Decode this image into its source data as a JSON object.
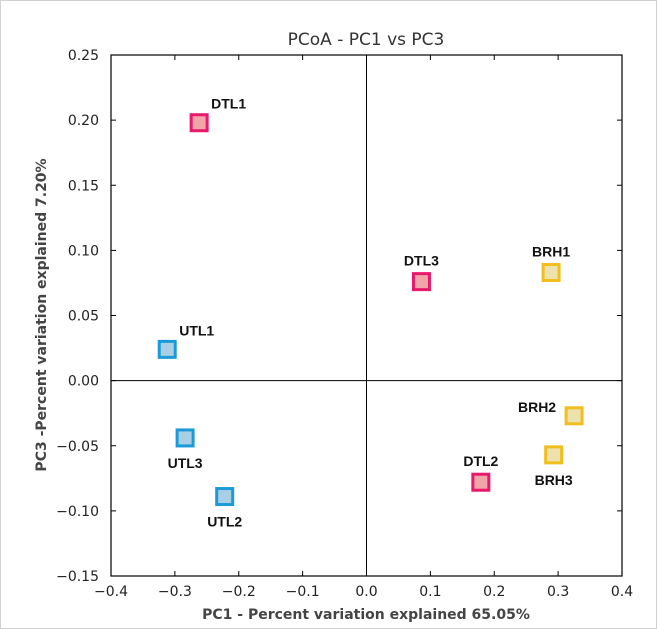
{
  "chart_data": {
    "type": "scatter",
    "title": "PCoA - PC1 vs PC3",
    "xlabel": "PC1 - Percent variation explained 65.05%",
    "ylabel": "PC3 -Percent variation explained 7.20%",
    "xlim": [
      -0.4,
      0.4
    ],
    "ylim": [
      -0.15,
      0.25
    ],
    "xticks": [
      -0.4,
      -0.3,
      -0.2,
      -0.1,
      0.0,
      0.1,
      0.2,
      0.3,
      0.4
    ],
    "yticks": [
      -0.15,
      -0.1,
      -0.05,
      0.0,
      0.05,
      0.1,
      0.15,
      0.2,
      0.25
    ],
    "xtick_labels": [
      "−0.4",
      "−0.3",
      "−0.2",
      "−0.1",
      "0.0",
      "0.1",
      "0.2",
      "0.3",
      "0.4"
    ],
    "ytick_labels": [
      "−0.15",
      "−0.10",
      "−0.05",
      "0.00",
      "0.05",
      "0.10",
      "0.15",
      "0.20",
      "0.25"
    ],
    "grid": false,
    "zero_lines": true,
    "groups": {
      "DTL": {
        "fill": "#f0a5a8",
        "stroke": "#e8186a"
      },
      "UTL": {
        "fill": "#a9cfe6",
        "stroke": "#1a9ad6"
      },
      "BRH": {
        "fill": "#ede1ad",
        "stroke": "#f2be1e"
      }
    },
    "points": [
      {
        "label": "DTL1",
        "group": "DTL",
        "x": -0.262,
        "y": 0.198,
        "label_pos": "above-right"
      },
      {
        "label": "DTL2",
        "group": "DTL",
        "x": 0.179,
        "y": -0.078,
        "label_pos": "above"
      },
      {
        "label": "DTL3",
        "group": "DTL",
        "x": 0.086,
        "y": 0.076,
        "label_pos": "above"
      },
      {
        "label": "UTL1",
        "group": "UTL",
        "x": -0.312,
        "y": 0.024,
        "label_pos": "above-right"
      },
      {
        "label": "UTL2",
        "group": "UTL",
        "x": -0.222,
        "y": -0.089,
        "label_pos": "below"
      },
      {
        "label": "UTL3",
        "group": "UTL",
        "x": -0.284,
        "y": -0.044,
        "label_pos": "below"
      },
      {
        "label": "BRH1",
        "group": "BRH",
        "x": 0.289,
        "y": 0.083,
        "label_pos": "above"
      },
      {
        "label": "BRH2",
        "group": "BRH",
        "x": 0.325,
        "y": -0.027,
        "label_pos": "left"
      },
      {
        "label": "BRH3",
        "group": "BRH",
        "x": 0.293,
        "y": -0.057,
        "label_pos": "below"
      }
    ]
  }
}
